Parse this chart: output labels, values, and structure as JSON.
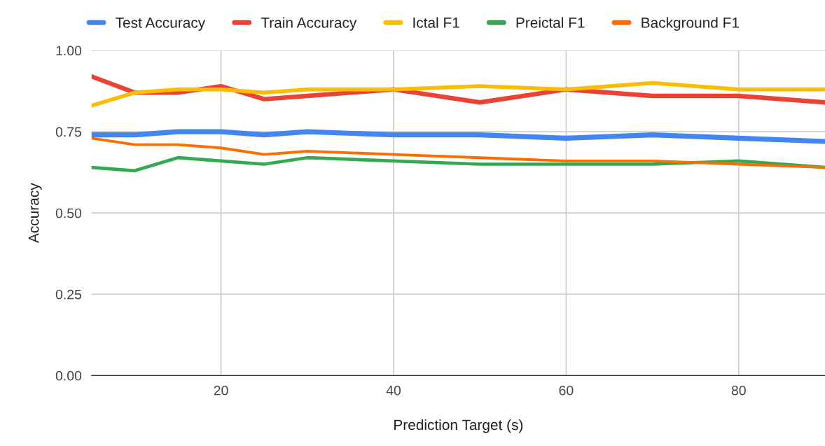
{
  "chart_data": {
    "type": "line",
    "xlabel": "Prediction Target (s)",
    "ylabel": "Accuracy",
    "x": [
      5,
      10,
      15,
      20,
      25,
      30,
      40,
      50,
      60,
      70,
      80,
      90
    ],
    "xlim": [
      5,
      90
    ],
    "xticks": [
      20,
      40,
      60,
      80
    ],
    "ylim": [
      0,
      1
    ],
    "yticks": [
      {
        "value": 0,
        "label": "0.00"
      },
      {
        "value": 0.25,
        "label": "0.25"
      },
      {
        "value": 0.5,
        "label": "0.50"
      },
      {
        "value": 0.75,
        "label": "0.75"
      },
      {
        "value": 1,
        "label": "1.00"
      }
    ],
    "grid": true,
    "legend": "top",
    "marker": "none",
    "line_style": "solid",
    "series": [
      {
        "name": "Test Accuracy",
        "color": "#4285f4",
        "values": [
          0.74,
          0.74,
          0.75,
          0.75,
          0.74,
          0.75,
          0.74,
          0.74,
          0.73,
          0.74,
          0.73,
          0.72
        ]
      },
      {
        "name": "Train Accuracy",
        "color": "#ea4335",
        "values": [
          0.92,
          0.87,
          0.87,
          0.89,
          0.85,
          0.86,
          0.88,
          0.84,
          0.88,
          0.86,
          0.86,
          0.84
        ]
      },
      {
        "name": "Ictal F1",
        "color": "#fbbc04",
        "values": [
          0.83,
          0.87,
          0.88,
          0.88,
          0.87,
          0.88,
          0.88,
          0.89,
          0.88,
          0.9,
          0.88,
          0.88
        ]
      },
      {
        "name": "Preictal F1",
        "color": "#34a853",
        "values": [
          0.64,
          0.63,
          0.67,
          0.66,
          0.65,
          0.67,
          0.66,
          0.65,
          0.65,
          0.65,
          0.66,
          0.64
        ]
      },
      {
        "name": "Background F1",
        "color": "#ff6d01",
        "values": [
          0.73,
          0.71,
          0.71,
          0.7,
          0.68,
          0.69,
          0.68,
          0.67,
          0.66,
          0.66,
          0.65,
          0.64
        ]
      }
    ]
  }
}
